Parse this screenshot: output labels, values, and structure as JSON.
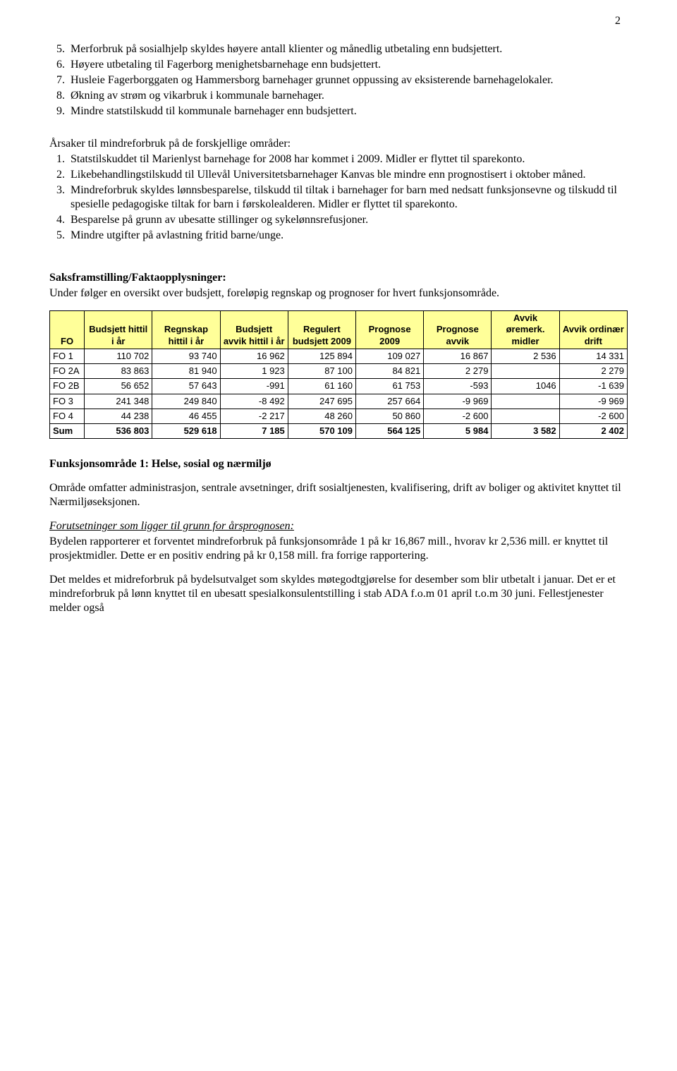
{
  "page_number": "2",
  "list_a": {
    "start": 5,
    "items": [
      "Merforbruk på sosialhjelp skyldes høyere antall klienter og månedlig utbetaling enn budsjettert.",
      "Høyere utbetaling til Fagerborg menighetsbarnehage enn budsjettert.",
      "Husleie Fagerborggaten og Hammersborg barnehager grunnet oppussing av eksisterende barnehagelokaler.",
      "Økning av strøm og vikarbruk i kommunale barnehager.",
      "Mindre statstilskudd til kommunale barnehager enn budsjettert."
    ]
  },
  "list_b_heading": "Årsaker til mindreforbruk på de forskjellige områder:",
  "list_b": {
    "start": 1,
    "items": [
      "Statstilskuddet til Marienlyst barnehage for 2008 har kommet i 2009. Midler er flyttet til sparekonto.",
      "Likebehandlingstilskudd til Ullevål Universitetsbarnehager Kanvas ble mindre enn prognostisert i oktober måned.",
      "Mindreforbruk skyldes lønnsbesparelse, tilskudd til tiltak i barnehager for barn med nedsatt funksjonsevne og tilskudd til spesielle pedagogiske tiltak for barn i førskolealderen. Midler er flyttet til sparekonto.",
      "Besparelse på grunn av ubesatte stillinger og sykelønnsrefusjoner.",
      "Mindre utgifter på avlastning fritid barne/unge."
    ]
  },
  "saks_heading": "Saksframstilling/Faktaopplysninger:",
  "saks_text": "Under følger en oversikt over budsjett, foreløpig regnskap og prognoser for hvert funksjonsområde.",
  "table": {
    "header_bg": "#ffff99",
    "columns": [
      "FO",
      "Budsjett hittil i år",
      "Regnskap hittil i år",
      "Budsjett avvik hittil i år",
      "Regulert budsjett 2009",
      "Prognose 2009",
      "Prognose avvik",
      "Avvik øremerk. midler",
      "Avvik ordinær drift"
    ],
    "rows": [
      [
        "FO 1",
        "110 702",
        "93 740",
        "16 962",
        "125 894",
        "109 027",
        "16 867",
        "2 536",
        "14 331"
      ],
      [
        "FO 2A",
        "83 863",
        "81 940",
        "1 923",
        "87 100",
        "84 821",
        "2 279",
        "",
        "2 279"
      ],
      [
        "FO 2B",
        "56 652",
        "57 643",
        "-991",
        "61 160",
        "61 753",
        "-593",
        "1046",
        "-1 639"
      ],
      [
        "FO 3",
        "241 348",
        "249 840",
        "-8 492",
        "247 695",
        "257 664",
        "-9 969",
        "",
        "-9 969"
      ],
      [
        "FO 4",
        "44 238",
        "46 455",
        "-2 217",
        "48 260",
        "50 860",
        "-2 600",
        "",
        "-2 600"
      ]
    ],
    "sum": [
      "Sum",
      "536 803",
      "529 618",
      "7 185",
      "570 109",
      "564 125",
      "5 984",
      "3 582",
      "2 402"
    ]
  },
  "fo1_heading": "Funksjonsområde 1: Helse, sosial og nærmiljø",
  "fo1_p1": "Område omfatter administrasjon, sentrale avsetninger, drift sosialtjenesten, kvalifisering, drift av boliger og aktivitet knyttet til Nærmiljøseksjonen.",
  "fo1_assumptions_label": "Forutsetninger som ligger til grunn for årsprognosen:",
  "fo1_p2": "Bydelen rapporterer et forventet mindreforbruk på funksjonsområde 1 på kr 16,867 mill., hvorav kr 2,536 mill. er knyttet til prosjektmidler. Dette er en positiv endring på kr 0,158 mill. fra forrige rapportering.",
  "fo1_p3": "Det meldes et midreforbruk på bydelsutvalget som skyldes møtegodtgjørelse for desember som blir utbetalt i januar. Det er et mindreforbruk på lønn knyttet til en ubesatt spesialkonsulentstilling i stab ADA f.o.m 01 april t.o.m 30 juni. Fellestjenester melder også"
}
